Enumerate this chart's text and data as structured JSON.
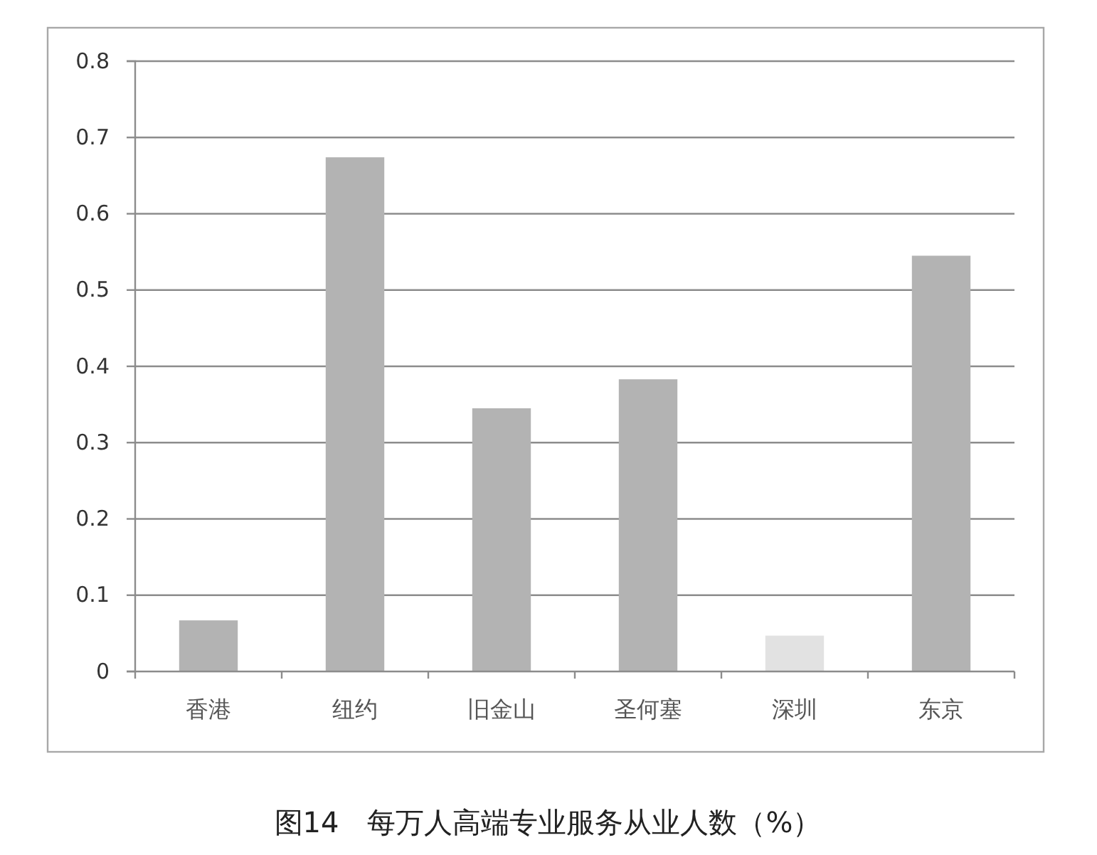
{
  "chart_data": {
    "type": "bar",
    "title": "图14　每万人高端专业服务从业人数（%）",
    "categories": [
      "香港",
      "纽约",
      "旧金山",
      "圣何塞",
      "深圳",
      "东京"
    ],
    "values": [
      0.067,
      0.674,
      0.345,
      0.383,
      0.047,
      0.545
    ],
    "colors": [
      "#b3b3b3",
      "#b3b3b3",
      "#b3b3b3",
      "#b3b3b3",
      "#e2e2e2",
      "#b3b3b3"
    ],
    "ylim": [
      0,
      0.8
    ],
    "yticks": [
      0,
      0.1,
      0.2,
      0.3,
      0.4,
      0.5,
      0.6,
      0.7,
      0.8
    ],
    "grid": "y"
  }
}
